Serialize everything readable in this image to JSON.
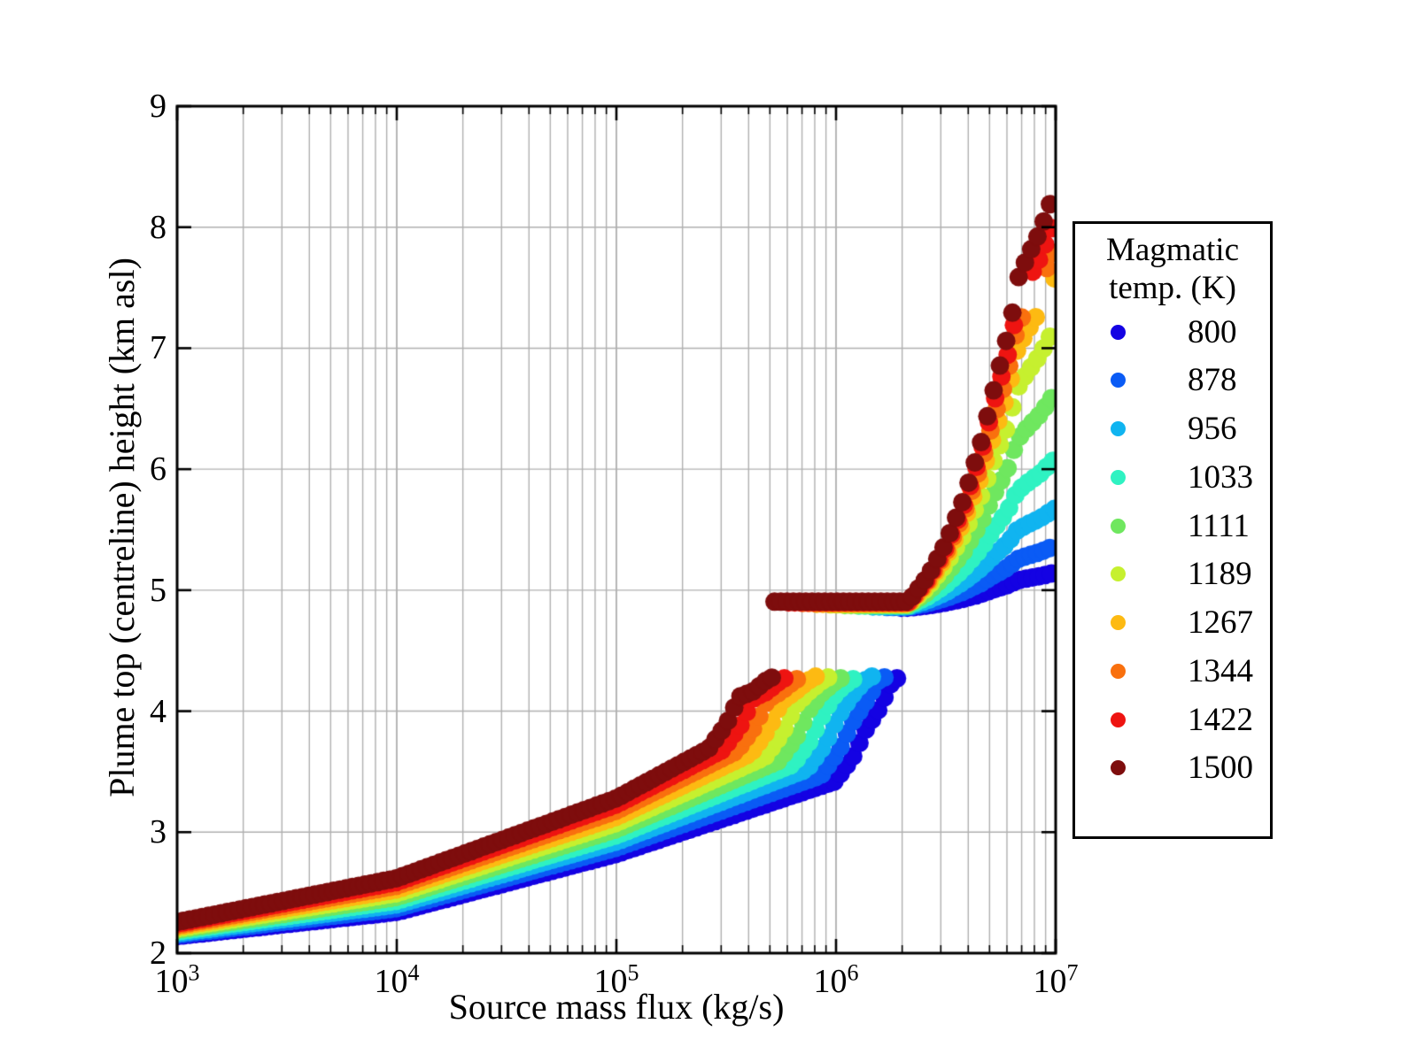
{
  "figure": {
    "background": "#ffffff",
    "grid_color": "#b0b0b0",
    "spine_color": "#000000"
  },
  "axes": {
    "xlabel": "Source mass flux (kg/s)",
    "ylabel": "Plume top (centreline) height (km asl)",
    "x_tick_labels": [
      {
        "base": "10",
        "exp": "3"
      },
      {
        "base": "10",
        "exp": "4"
      },
      {
        "base": "10",
        "exp": "5"
      },
      {
        "base": "10",
        "exp": "6"
      },
      {
        "base": "10",
        "exp": "7"
      }
    ],
    "y_tick_labels": [
      "2",
      "3",
      "4",
      "5",
      "6",
      "7",
      "8",
      "9"
    ]
  },
  "legend": {
    "title_lines": [
      "Magmatic",
      "temp. (K)"
    ],
    "entries": [
      {
        "temp": "800",
        "color": "#1402e3"
      },
      {
        "temp": "878",
        "color": "#0a5bf5"
      },
      {
        "temp": "956",
        "color": "#10b4f0"
      },
      {
        "temp": "1033",
        "color": "#2ff2c2"
      },
      {
        "temp": "1111",
        "color": "#6fe75f"
      },
      {
        "temp": "1189",
        "color": "#c6f02f"
      },
      {
        "temp": "1267",
        "color": "#fdba12"
      },
      {
        "temp": "1344",
        "color": "#f9700e"
      },
      {
        "temp": "1422",
        "color": "#ee1411"
      },
      {
        "temp": "1500",
        "color": "#7e0d0d"
      }
    ]
  },
  "chart_data": {
    "type": "scatter",
    "title": "",
    "xlabel": "Source mass flux (kg/s)",
    "ylabel": "Plume top (centreline) height (km asl)",
    "x_scale": "log10",
    "xlim_log10": [
      3,
      7
    ],
    "ylim": [
      2,
      9
    ],
    "grid": "on",
    "legend_position": "outside-right",
    "legend_title": "Magmatic temp. (K)",
    "marker_radius_px": 10.5,
    "sample_step_log10": 0.0285,
    "gap_mask": {
      "y_min": 7.33,
      "y_max": 7.55,
      "applies_to": "upper"
    },
    "series": [
      {
        "temp": 800,
        "color": "#1402e3",
        "lower": [
          [
            3,
            2.14
          ],
          [
            4,
            2.34
          ],
          [
            5,
            2.82
          ],
          [
            5.996,
            3.42
          ],
          [
            6.076,
            3.62
          ],
          [
            6.136,
            3.85
          ],
          [
            6.196,
            4.02
          ],
          [
            6.256,
            4.25
          ],
          [
            6.296,
            4.29
          ]
        ],
        "upper": [
          [
            6.296,
            4.855
          ],
          [
            6.33,
            4.855
          ],
          [
            6.42,
            4.873
          ],
          [
            6.5,
            4.897
          ],
          [
            6.58,
            4.928
          ],
          [
            6.66,
            4.968
          ],
          [
            6.72,
            5.007
          ],
          [
            6.78,
            5.041
          ],
          [
            6.825,
            5.081
          ],
          [
            6.87,
            5.097
          ],
          [
            6.93,
            5.116
          ],
          [
            7.0,
            5.146
          ]
        ]
      },
      {
        "temp": 878,
        "color": "#0a5bf5",
        "lower": [
          [
            3,
            2.153
          ],
          [
            4,
            2.371
          ],
          [
            5,
            2.871
          ],
          [
            5.932,
            3.47
          ],
          [
            6.012,
            3.67
          ],
          [
            6.072,
            3.9
          ],
          [
            6.132,
            4.07
          ],
          [
            6.192,
            4.25
          ],
          [
            6.232,
            4.29
          ]
        ],
        "upper": [
          [
            6.232,
            4.861
          ],
          [
            6.33,
            4.861
          ],
          [
            6.42,
            4.893
          ],
          [
            6.5,
            4.934
          ],
          [
            6.58,
            4.988
          ],
          [
            6.66,
            5.058
          ],
          [
            6.72,
            5.126
          ],
          [
            6.78,
            5.186
          ],
          [
            6.825,
            5.255
          ],
          [
            6.87,
            5.283
          ],
          [
            6.93,
            5.316
          ],
          [
            7.0,
            5.369
          ]
        ]
      },
      {
        "temp": 956,
        "color": "#10b4f0",
        "lower": [
          [
            3,
            2.166
          ],
          [
            4,
            2.402
          ],
          [
            5,
            2.922
          ],
          [
            5.868,
            3.52
          ],
          [
            5.948,
            3.72
          ],
          [
            6.008,
            3.95
          ],
          [
            6.068,
            4.12
          ],
          [
            6.128,
            4.25
          ],
          [
            6.168,
            4.29
          ]
        ],
        "upper": [
          [
            6.168,
            4.866
          ],
          [
            6.33,
            4.866
          ],
          [
            6.42,
            4.918
          ],
          [
            6.5,
            4.982
          ],
          [
            6.58,
            5.069
          ],
          [
            6.66,
            5.182
          ],
          [
            6.72,
            5.29
          ],
          [
            6.78,
            5.386
          ],
          [
            6.825,
            5.496
          ],
          [
            6.87,
            5.542
          ],
          [
            6.93,
            5.594
          ],
          [
            7.0,
            5.678
          ]
        ]
      },
      {
        "temp": 1033,
        "color": "#2ff2c2",
        "lower": [
          [
            3,
            2.179
          ],
          [
            4,
            2.433
          ],
          [
            5,
            2.973
          ],
          [
            5.804,
            3.56
          ],
          [
            5.884,
            3.76
          ],
          [
            5.944,
            3.99
          ],
          [
            6.004,
            4.16
          ],
          [
            6.064,
            4.25
          ],
          [
            6.104,
            4.29
          ]
        ],
        "upper": [
          [
            6.104,
            4.872
          ],
          [
            6.33,
            4.872
          ],
          [
            6.42,
            4.949
          ],
          [
            6.5,
            5.047
          ],
          [
            6.58,
            5.176
          ],
          [
            6.66,
            5.345
          ],
          [
            6.72,
            5.507
          ],
          [
            6.78,
            5.651
          ],
          [
            6.825,
            5.817
          ],
          [
            6.87,
            5.885
          ],
          [
            6.93,
            5.965
          ],
          [
            7.0,
            6.091
          ]
        ]
      },
      {
        "temp": 1111,
        "color": "#6fe75f",
        "lower": [
          [
            3,
            2.192
          ],
          [
            4,
            2.464
          ],
          [
            5,
            3.024
          ],
          [
            5.74,
            3.59
          ],
          [
            5.82,
            3.79
          ],
          [
            5.88,
            4.02
          ],
          [
            5.94,
            4.16
          ],
          [
            6.0,
            4.25
          ],
          [
            6.04,
            4.29
          ]
        ],
        "upper": [
          [
            6.04,
            4.877
          ],
          [
            6.33,
            4.877
          ],
          [
            6.42,
            4.989
          ],
          [
            6.5,
            5.129
          ],
          [
            6.58,
            5.316
          ],
          [
            6.66,
            5.561
          ],
          [
            6.72,
            5.795
          ],
          [
            6.78,
            6.003
          ],
          [
            6.825,
            6.242
          ],
          [
            6.87,
            6.341
          ],
          [
            6.93,
            6.455
          ],
          [
            7.0,
            6.637
          ]
        ]
      },
      {
        "temp": 1189,
        "color": "#c6f02f",
        "lower": [
          [
            3,
            2.205
          ],
          [
            4,
            2.495
          ],
          [
            5,
            3.075
          ],
          [
            5.676,
            3.62
          ],
          [
            5.756,
            3.82
          ],
          [
            5.816,
            4.05
          ],
          [
            5.876,
            4.16
          ],
          [
            5.936,
            4.25
          ],
          [
            5.976,
            4.29
          ]
        ],
        "upper": [
          [
            5.976,
            4.883
          ],
          [
            6.33,
            4.883
          ],
          [
            6.42,
            5.029
          ],
          [
            6.5,
            5.213
          ],
          [
            6.58,
            5.458
          ],
          [
            6.66,
            5.777
          ],
          [
            6.72,
            6.083
          ],
          [
            6.78,
            6.355
          ],
          [
            6.825,
            6.668
          ],
          [
            6.87,
            6.797
          ],
          [
            6.93,
            6.947
          ],
          [
            7.0,
            7.185
          ]
        ]
      },
      {
        "temp": 1267,
        "color": "#fdba12",
        "lower": [
          [
            3,
            2.218
          ],
          [
            4,
            2.526
          ],
          [
            5,
            3.126
          ],
          [
            5.612,
            3.65
          ],
          [
            5.692,
            3.85
          ],
          [
            5.752,
            4.08
          ],
          [
            5.812,
            4.16
          ],
          [
            5.872,
            4.25
          ],
          [
            5.912,
            4.29
          ]
        ],
        "upper": [
          [
            5.912,
            4.888
          ],
          [
            6.33,
            4.888
          ],
          [
            6.42,
            5.06
          ],
          [
            6.5,
            5.276
          ],
          [
            6.58,
            5.564
          ],
          [
            6.66,
            5.94
          ],
          [
            6.72,
            6.3
          ],
          [
            6.78,
            6.62
          ],
          [
            6.825,
            6.988
          ],
          [
            6.87,
            7.14
          ],
          [
            6.93,
            7.316
          ],
          [
            7.0,
            7.596
          ]
        ]
      },
      {
        "temp": 1344,
        "color": "#f9700e",
        "lower": [
          [
            3,
            2.231
          ],
          [
            4,
            2.557
          ],
          [
            5,
            3.177
          ],
          [
            5.548,
            3.67
          ],
          [
            5.628,
            3.87
          ],
          [
            5.688,
            4.1
          ],
          [
            5.748,
            4.16
          ],
          [
            5.808,
            4.25
          ],
          [
            5.848,
            4.29
          ]
        ],
        "upper": [
          [
            5.848,
            4.894
          ],
          [
            6.33,
            4.894
          ],
          [
            6.42,
            5.081
          ],
          [
            6.5,
            5.316
          ],
          [
            6.58,
            5.629
          ],
          [
            6.66,
            6.038
          ],
          [
            6.72,
            6.43
          ],
          [
            6.78,
            6.778
          ],
          [
            6.825,
            7.178
          ],
          [
            6.87,
            7.343
          ],
          [
            6.93,
            7.534
          ],
          [
            7.0,
            7.839
          ]
        ]
      },
      {
        "temp": 1422,
        "color": "#ee1411",
        "lower": [
          [
            3,
            2.244
          ],
          [
            4,
            2.588
          ],
          [
            5,
            3.228
          ],
          [
            5.484,
            3.68
          ],
          [
            5.564,
            3.88
          ],
          [
            5.624,
            4.11
          ],
          [
            5.684,
            4.16
          ],
          [
            5.744,
            4.25
          ],
          [
            5.784,
            4.29
          ]
        ],
        "upper": [
          [
            5.784,
            4.899
          ],
          [
            6.33,
            4.899
          ],
          [
            6.42,
            5.101
          ],
          [
            6.5,
            5.355
          ],
          [
            6.58,
            5.693
          ],
          [
            6.66,
            6.135
          ],
          [
            6.72,
            6.558
          ],
          [
            6.78,
            6.934
          ],
          [
            6.805,
            7.132
          ],
          [
            6.825,
            7.367
          ],
          [
            6.87,
            7.545
          ],
          [
            6.93,
            7.752
          ],
          [
            7.0,
            8.081
          ]
        ]
      },
      {
        "temp": 1500,
        "color": "#7e0d0d",
        "lower": [
          [
            3,
            2.257
          ],
          [
            4,
            2.619
          ],
          [
            5,
            3.279
          ],
          [
            5.42,
            3.69
          ],
          [
            5.5,
            3.89
          ],
          [
            5.56,
            4.12
          ],
          [
            5.62,
            4.16
          ],
          [
            5.68,
            4.25
          ],
          [
            5.72,
            4.29
          ]
        ],
        "upper": [
          [
            5.72,
            4.905
          ],
          [
            6.33,
            4.905
          ],
          [
            6.42,
            5.12
          ],
          [
            6.5,
            5.39
          ],
          [
            6.58,
            5.75
          ],
          [
            6.66,
            6.22
          ],
          [
            6.72,
            6.67
          ],
          [
            6.78,
            7.1
          ],
          [
            6.805,
            7.31
          ],
          [
            6.825,
            7.56
          ],
          [
            6.87,
            7.75
          ],
          [
            6.93,
            7.97
          ],
          [
            7.0,
            8.32
          ]
        ]
      }
    ]
  }
}
